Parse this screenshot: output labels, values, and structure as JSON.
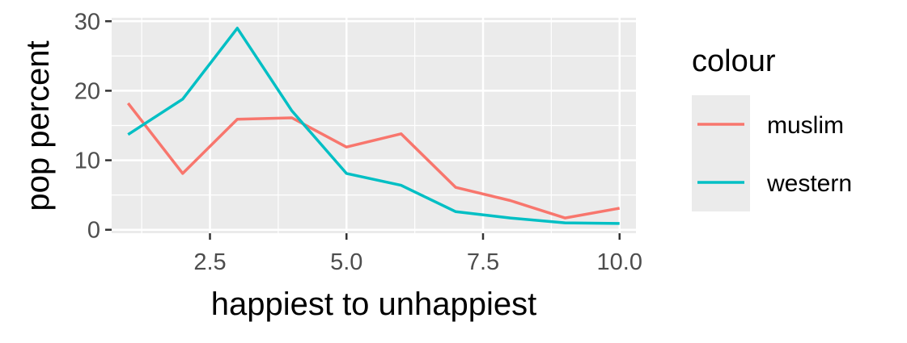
{
  "chart_data": {
    "type": "line",
    "xlabel": "happiest to unhappiest",
    "ylabel": "pop percent",
    "xlim": [
      0.7,
      10.3
    ],
    "ylim": [
      -0.5,
      30.5
    ],
    "x_ticks": [
      2.5,
      5.0,
      7.5,
      10.0
    ],
    "x_tick_labels": [
      "2.5",
      "5.0",
      "7.5",
      "10.0"
    ],
    "y_ticks": [
      0,
      10,
      20,
      30
    ],
    "y_tick_labels": [
      "0",
      "10",
      "20",
      "30"
    ],
    "grid": true,
    "legend": {
      "title": "colour",
      "position": "right"
    },
    "series": [
      {
        "name": "muslim",
        "color": "#F8766D",
        "x": [
          1,
          2,
          3,
          4,
          5,
          6,
          7,
          8,
          9,
          10
        ],
        "y": [
          18.2,
          8.1,
          15.9,
          16.1,
          11.9,
          13.8,
          6.1,
          4.2,
          1.7,
          3.1
        ]
      },
      {
        "name": "western",
        "color": "#00BFC4",
        "x": [
          1,
          2,
          3,
          4,
          5,
          6,
          7,
          8,
          9,
          10
        ],
        "y": [
          13.7,
          18.8,
          29.0,
          17.1,
          8.1,
          6.4,
          2.6,
          1.7,
          1.0,
          0.9
        ]
      }
    ]
  }
}
